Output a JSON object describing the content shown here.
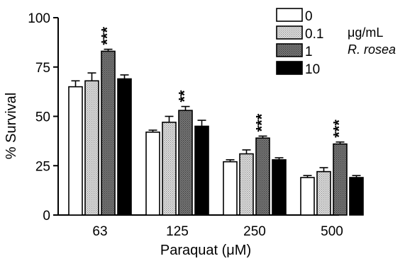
{
  "chart_data": {
    "type": "bar",
    "categories": [
      "63",
      "125",
      "250",
      "500"
    ],
    "series": [
      {
        "name": "0",
        "values": [
          65,
          42,
          27,
          19
        ],
        "errors": [
          3,
          1,
          1,
          1
        ],
        "fill": "white"
      },
      {
        "name": "0.1",
        "values": [
          68,
          47,
          31,
          22
        ],
        "errors": [
          4,
          3,
          2,
          2
        ],
        "fill": "light-dotted"
      },
      {
        "name": "1",
        "values": [
          83,
          53,
          39,
          36
        ],
        "errors": [
          1,
          2,
          1,
          1
        ],
        "fill": "dark-dotted"
      },
      {
        "name": "10",
        "values": [
          69,
          45,
          28,
          19
        ],
        "errors": [
          2,
          3,
          1,
          1
        ],
        "fill": "black"
      }
    ],
    "significance": [
      {
        "category": "63",
        "series": "1",
        "label": "***"
      },
      {
        "category": "125",
        "series": "1",
        "label": "**"
      },
      {
        "category": "250",
        "series": "1",
        "label": "***"
      },
      {
        "category": "500",
        "series": "1",
        "label": "***"
      }
    ],
    "title": "",
    "xlabel": "Paraquat (μM)",
    "ylabel": "% Survival",
    "ylim": [
      0,
      100
    ],
    "yticks": [
      "0",
      "25",
      "50",
      "75",
      "100"
    ],
    "legend": {
      "position": "top-right",
      "note_line1": "μg/mL",
      "note_line2": "R. rosea"
    },
    "grid": false,
    "colors": {
      "axis": "#000000",
      "light_fill": "#d6d6d6",
      "dark_fill": "#8a8a8a",
      "black": "#000000"
    }
  }
}
